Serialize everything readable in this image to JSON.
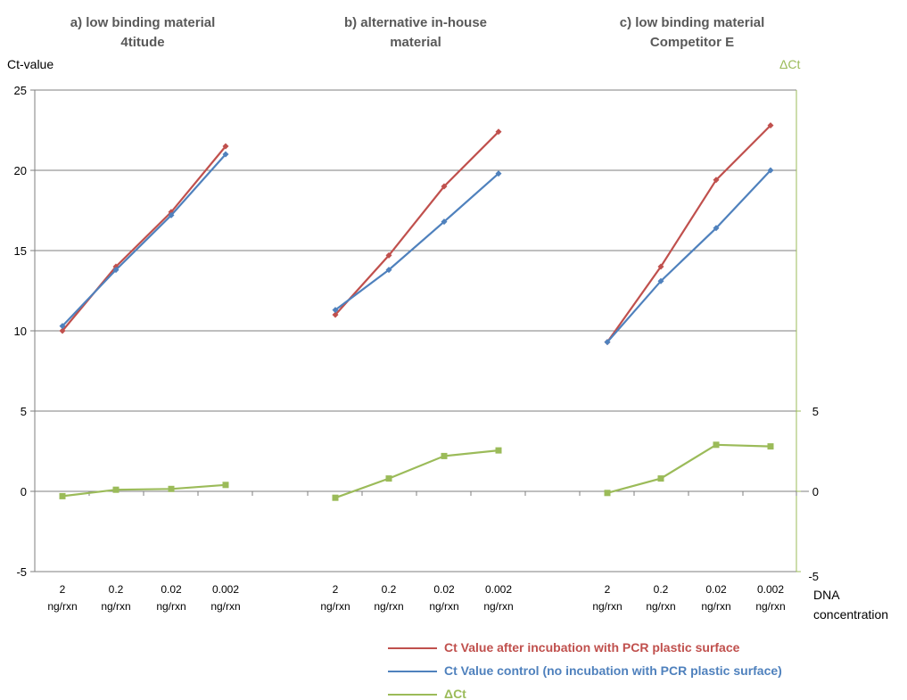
{
  "chart_data": {
    "type": "line",
    "panel_titles": [
      [
        "a) low binding material",
        "4titude"
      ],
      [
        "b) alternative in-house",
        "material"
      ],
      [
        "c) low binding material",
        "Competitor E"
      ]
    ],
    "y_left_label": "Ct-value",
    "y_right_label": "ΔCt",
    "x_axis_label": [
      "DNA",
      "concentration"
    ],
    "categories": [
      [
        "2",
        "ng/rxn"
      ],
      [
        "0.2",
        "ng/rxn"
      ],
      [
        "0.02",
        "ng/rxn"
      ],
      [
        "0.002",
        "ng/rxn"
      ]
    ],
    "ylim": [
      -5,
      25
    ],
    "y_ticks": [
      -5,
      0,
      5,
      10,
      15,
      20,
      25
    ],
    "y_right_ticks": [
      -5,
      0,
      5
    ],
    "grid": true,
    "colors": {
      "after": "#c0504d",
      "control": "#4f81bd",
      "delta": "#9bbb59"
    },
    "legend_position": "bottom",
    "series": [
      {
        "name": "Ct Value after incubation with PCR plastic surface",
        "key": "after",
        "marker": "diamond",
        "panels": [
          [
            10.0,
            14.0,
            17.4,
            21.5
          ],
          [
            11.0,
            14.7,
            19.0,
            22.4
          ],
          [
            9.3,
            14.0,
            19.4,
            22.8
          ]
        ]
      },
      {
        "name": "Ct Value control (no incubation with PCR plastic surface)",
        "key": "control",
        "marker": "diamond",
        "panels": [
          [
            10.3,
            13.8,
            17.2,
            21.0
          ],
          [
            11.3,
            13.8,
            16.8,
            19.8
          ],
          [
            9.3,
            13.1,
            16.4,
            20.0
          ]
        ]
      },
      {
        "name": "ΔCt",
        "key": "delta",
        "marker": "square",
        "panels": [
          [
            -0.3,
            0.1,
            0.15,
            0.4
          ],
          [
            -0.4,
            0.8,
            2.2,
            2.55
          ],
          [
            -0.1,
            0.8,
            2.9,
            2.8
          ]
        ]
      }
    ]
  }
}
